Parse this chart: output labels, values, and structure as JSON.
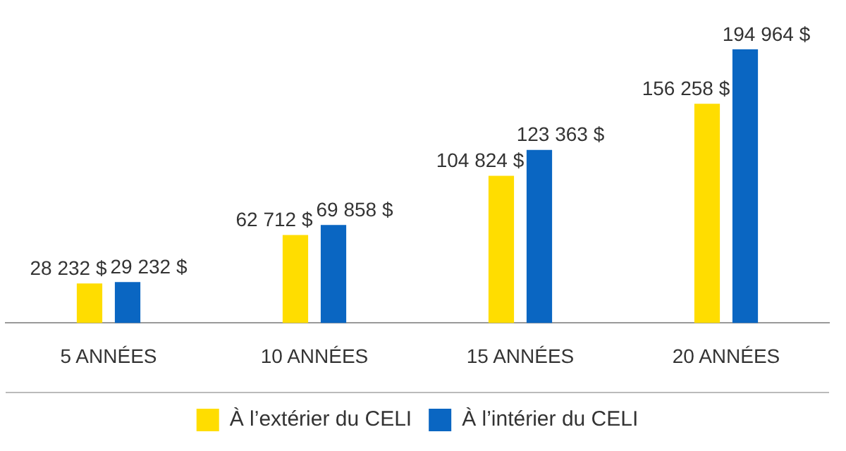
{
  "chart_data": {
    "type": "bar",
    "categories": [
      "5 ANNÉES",
      "10 ANNÉES",
      "15 ANNÉES",
      "20 ANNÉES"
    ],
    "series": [
      {
        "name": "À l’extérier du CELI",
        "color": "#ffdd00",
        "values": [
          28232,
          62712,
          104824,
          156258
        ],
        "value_labels": [
          "28 232 $",
          "62 712 $",
          "104 824 $",
          "156 258 $"
        ]
      },
      {
        "name": "À l’intérier du CELI",
        "color": "#0a66c2",
        "values": [
          29232,
          69858,
          123363,
          194964
        ],
        "value_labels": [
          "29 232 $",
          "69 858 $",
          "123 363 $",
          "194 964 $"
        ]
      }
    ],
    "legend": "bottom",
    "grid": false
  }
}
